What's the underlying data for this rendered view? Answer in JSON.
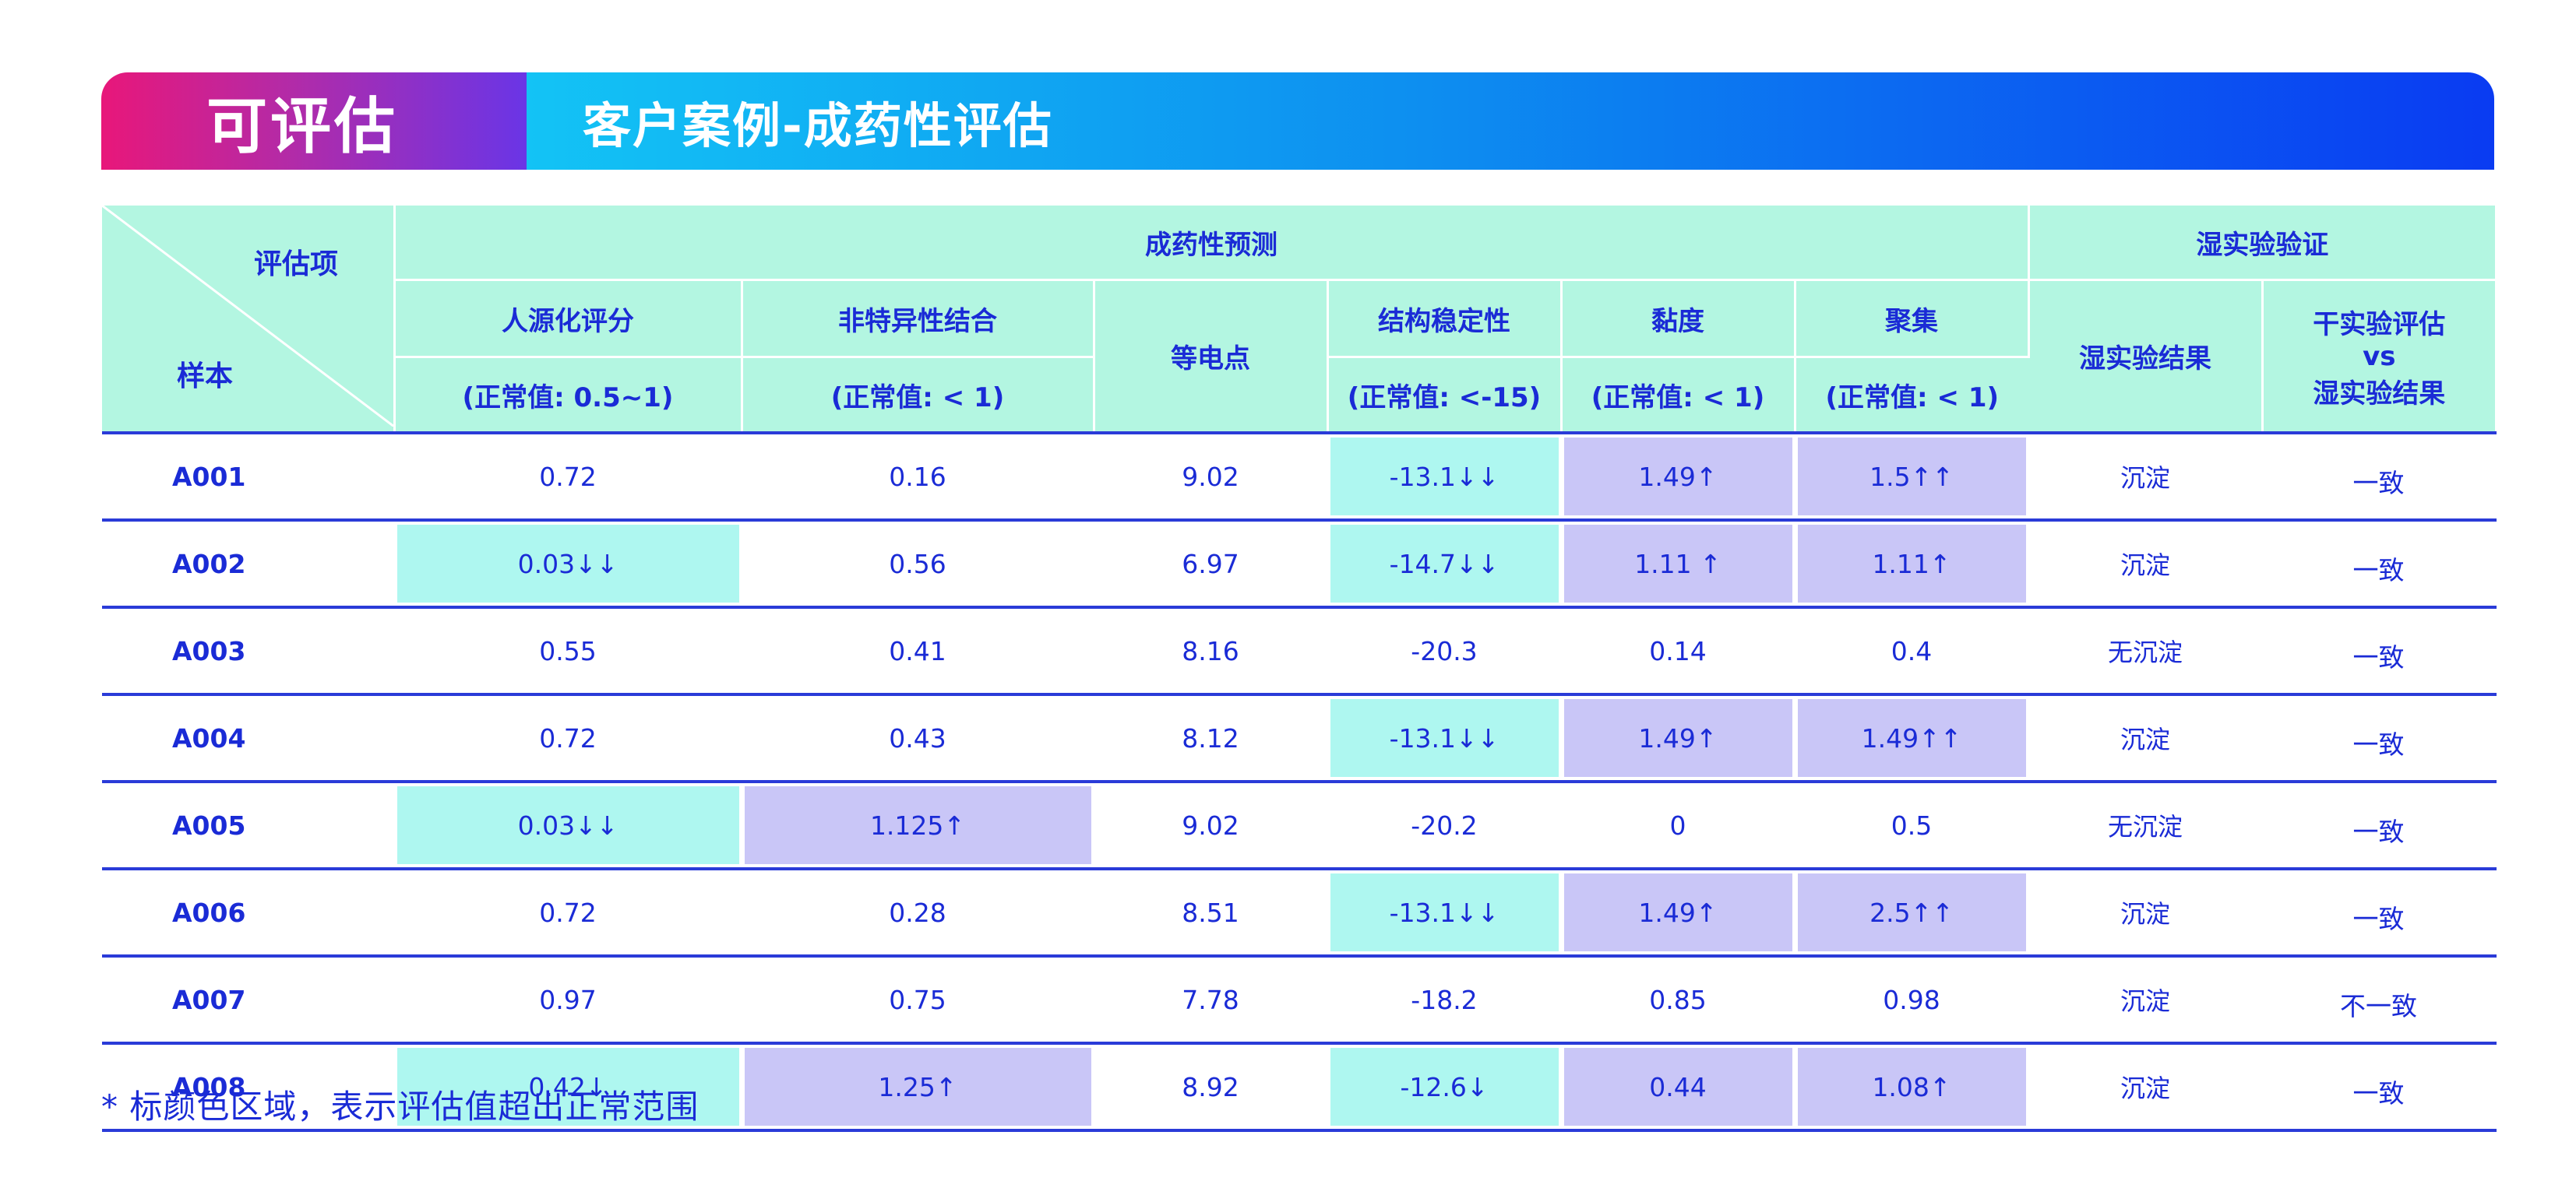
{
  "banner": {
    "left_title": "可评估",
    "right_title": "客户案例-成药性评估"
  },
  "table": {
    "corner_top": "评估项",
    "corner_bottom": "样本",
    "group_pred": "成药性预测",
    "group_wet": "湿实验验证",
    "cols": {
      "humanization": "人源化评分",
      "humanization_norm": "(正常值: 0.5~1)",
      "nonspecific": "非特异性结合",
      "nonspecific_norm": "(正常值: < 1)",
      "pi": "等电点",
      "stability": "结构稳定性",
      "stability_norm": "(正常值: <-15)",
      "viscosity": "黏度",
      "viscosity_norm": "(正常值: < 1)",
      "aggregation": "聚集",
      "aggregation_norm": "(正常值: < 1)",
      "wet_result": "湿实验结果",
      "dry_vs_wet_1": "干实验评估",
      "dry_vs_wet_2": "vs",
      "dry_vs_wet_3": "湿实验结果"
    },
    "rows": [
      {
        "sample": "A001",
        "hum": "0.72",
        "nsb": "0.16",
        "pi": "9.02",
        "stab": "-13.1↓↓",
        "visc": "1.49↑",
        "agg": "1.5↑↑",
        "wet": "沉淀",
        "cmp": "一致"
      },
      {
        "sample": "A002",
        "hum": "0.03↓↓",
        "nsb": "0.56",
        "pi": "6.97",
        "stab": "-14.7↓↓",
        "visc": "1.11 ↑",
        "agg": "1.11↑",
        "wet": "沉淀",
        "cmp": "一致"
      },
      {
        "sample": "A003",
        "hum": "0.55",
        "nsb": "0.41",
        "pi": "8.16",
        "stab": "-20.3",
        "visc": "0.14",
        "agg": "0.4",
        "wet": "无沉淀",
        "cmp": "一致"
      },
      {
        "sample": "A004",
        "hum": "0.72",
        "nsb": "0.43",
        "pi": "8.12",
        "stab": "-13.1↓↓",
        "visc": "1.49↑",
        "agg": "1.49↑↑",
        "wet": "沉淀",
        "cmp": "一致"
      },
      {
        "sample": "A005",
        "hum": "0.03↓↓",
        "nsb": "1.125↑",
        "pi": "9.02",
        "stab": "-20.2",
        "visc": "0",
        "agg": "0.5",
        "wet": "无沉淀",
        "cmp": "一致"
      },
      {
        "sample": "A006",
        "hum": "0.72",
        "nsb": "0.28",
        "pi": "8.51",
        "stab": "-13.1↓↓",
        "visc": "1.49↑",
        "agg": "2.5↑↑",
        "wet": "沉淀",
        "cmp": "一致"
      },
      {
        "sample": "A007",
        "hum": "0.97",
        "nsb": "0.75",
        "pi": "7.78",
        "stab": "-18.2",
        "visc": "0.85",
        "agg": "0.98",
        "wet": "沉淀",
        "cmp": "不一致"
      },
      {
        "sample": "A008",
        "hum": "0.42↓",
        "nsb": "1.25↑",
        "pi": "8.92",
        "stab": "-12.6↓",
        "visc": "0.44",
        "agg": "1.08↑",
        "wet": "沉淀",
        "cmp": "一致"
      }
    ]
  },
  "footnote": "* 标颜色区域，表示评估值超出正常范围",
  "colors": {
    "header_bg": "#b3f6e1",
    "text": "#1a2bd6",
    "highlight_cyan": "#aef7f0",
    "highlight_purple": "#c9c6f7"
  }
}
